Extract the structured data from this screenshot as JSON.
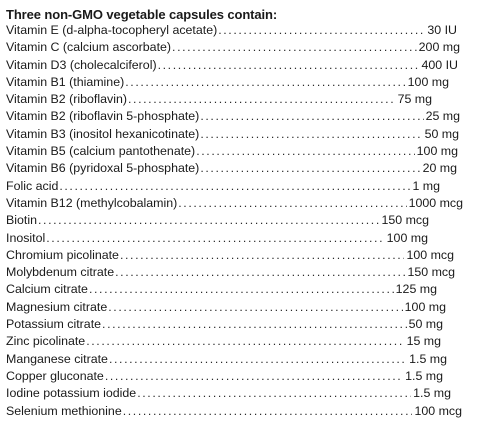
{
  "heading": "Three non-GMO vegetable capsules contain:",
  "rows": [
    {
      "name": "Vitamin E (d-alpha-tocopheryl acetate)",
      "amount": "30 IU",
      "end": 457
    },
    {
      "name": "Vitamin C (calcium ascorbate)",
      "amount": "200 mg",
      "end": 460
    },
    {
      "name": "Vitamin D3 (cholecalciferol)",
      "amount": "400 IU",
      "end": 458
    },
    {
      "name": "Vitamin B1 (thiamine)",
      "amount": "100 mg",
      "end": 449
    },
    {
      "name": "Vitamin B2 (riboflavin)",
      "amount": "75 mg",
      "end": 432
    },
    {
      "name": "Vitamin B2 (riboflavin 5-phosphate)",
      "amount": "25 mg",
      "end": 460
    },
    {
      "name": "Vitamin B3 (inositol hexanicotinate)",
      "amount": "50 mg",
      "end": 459
    },
    {
      "name": "Vitamin B5 (calcium pantothenate)",
      "amount": "100 mg",
      "end": 458
    },
    {
      "name": "Vitamin B6 (pyridoxal 5-phosphate)",
      "amount": "20 mg",
      "end": 457
    },
    {
      "name": "Folic acid",
      "amount": "1 mg",
      "end": 440
    },
    {
      "name": "Vitamin B12 (methylcobalamin)",
      "amount": "1000 mcg",
      "end": 463
    },
    {
      "name": "Biotin",
      "amount": "150 mcg",
      "end": 429
    },
    {
      "name": "Inositol",
      "amount": "100 mg",
      "end": 428
    },
    {
      "name": "Chromium picolinate",
      "amount": "100 mcg",
      "end": 454
    },
    {
      "name": "Molybdenum citrate",
      "amount": "150 mcg",
      "end": 455
    },
    {
      "name": "Calcium citrate",
      "amount": "125 mg",
      "end": 437
    },
    {
      "name": "Magnesium citrate",
      "amount": "100 mg",
      "end": 446
    },
    {
      "name": "Potassium citrate",
      "amount": "50 mg",
      "end": 443
    },
    {
      "name": "Zinc picolinate",
      "amount": "15 mg",
      "end": 441
    },
    {
      "name": "Manganese citrate",
      "amount": "1.5 mg",
      "end": 447
    },
    {
      "name": "Copper gluconate",
      "amount": "1.5 mg",
      "end": 443
    },
    {
      "name": "Iodine potassium iodide",
      "amount": "1.5 mg",
      "end": 451
    },
    {
      "name": "Selenium methionine",
      "amount": "100 mcg",
      "end": 462
    }
  ]
}
